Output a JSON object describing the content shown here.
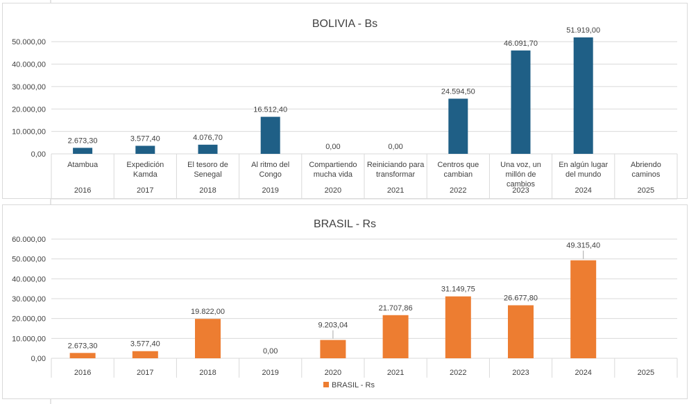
{
  "colors": {
    "bolivia_bar": "#1f5f86",
    "brasil_bar": "#ed7d31",
    "gridline": "#d9d9d9",
    "text": "#404040"
  },
  "chart_data": [
    {
      "type": "bar",
      "title": "BOLIVIA - Bs",
      "categories": [
        "2016",
        "2017",
        "2018",
        "2019",
        "2020",
        "2021",
        "2022",
        "2023",
        "2024",
        "2025"
      ],
      "sub_categories": [
        "Atambua",
        "Expedición Kamda",
        "El tesoro de Senegal",
        "Al ritmo del Congo",
        "Compartiendo mucha vida",
        "Reiniciando para transformar",
        "Centros que cambian",
        "Una voz, un millón de cambios",
        "En algún lugar del mundo",
        "Abriendo caminos"
      ],
      "values": [
        2673.3,
        3577.4,
        4076.7,
        16512.4,
        0,
        0,
        24594.5,
        46091.7,
        51919.0,
        null
      ],
      "data_labels": [
        "2.673,30",
        "3.577,40",
        "4.076,70",
        "16.512,40",
        "0,00",
        "0,00",
        "24.594,50",
        "46.091,70",
        "51.919,00",
        ""
      ],
      "y_ticks": [
        "0,00",
        "10.000,00",
        "20.000,00",
        "30.000,00",
        "40.000,00",
        "50.000,00"
      ],
      "ylim": [
        0,
        55000
      ],
      "grid": true,
      "legend": "none"
    },
    {
      "type": "bar",
      "title": "BRASIL - Rs",
      "categories": [
        "2016",
        "2017",
        "2018",
        "2019",
        "2020",
        "2021",
        "2022",
        "2023",
        "2024",
        "2025"
      ],
      "series": [
        {
          "name": "BRASIL - Rs",
          "values": [
            2673.3,
            3577.4,
            19822.0,
            0,
            9203.04,
            21707.86,
            31149.75,
            26677.8,
            49315.4,
            null
          ]
        }
      ],
      "data_labels": [
        "2.673,30",
        "3.577,40",
        "19.822,00",
        "0,00",
        "9.203,04",
        "21.707,86",
        "31.149,75",
        "26.677,80",
        "49.315,40",
        ""
      ],
      "y_ticks": [
        "0,00",
        "10.000,00",
        "20.000,00",
        "30.000,00",
        "40.000,00",
        "50.000,00",
        "60.000,00"
      ],
      "ylim": [
        0,
        60000
      ],
      "grid": true,
      "legend": "bottom"
    }
  ]
}
